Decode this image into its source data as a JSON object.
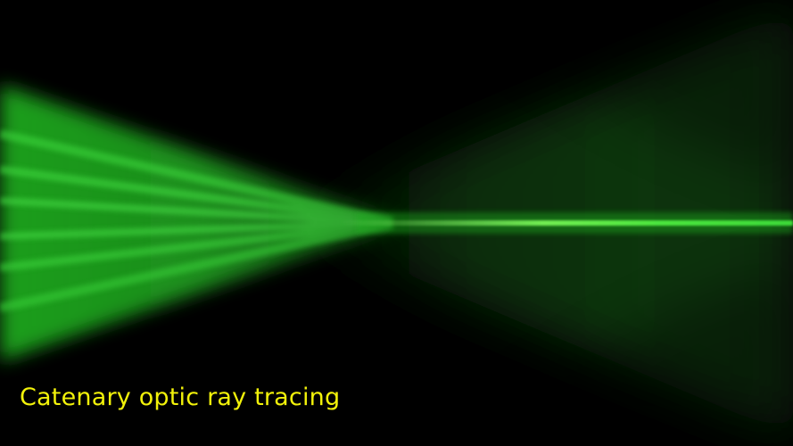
{
  "caption": {
    "text": "Catenary optic ray tracing",
    "color": "#f2f20a"
  },
  "scene": {
    "background_color": "#000000",
    "beam_color": "#22dd22"
  }
}
